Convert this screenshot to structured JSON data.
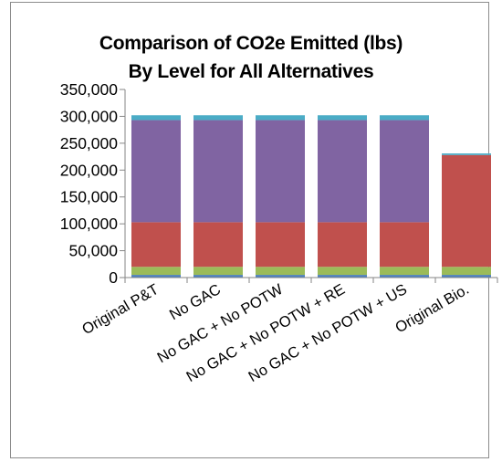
{
  "chart_data": {
    "type": "bar",
    "stacked": true,
    "title": "Comparison of CO2e Emitted (lbs) By Level for All Alternatives",
    "title_lines": [
      "Comparison of CO2e Emitted (lbs)",
      "By Level for All Alternatives"
    ],
    "xlabel": "",
    "ylabel": "",
    "ylim": [
      0,
      350000
    ],
    "yticks": [
      0,
      50000,
      100000,
      150000,
      200000,
      250000,
      300000,
      350000
    ],
    "ytick_labels": [
      "0",
      "50,000",
      "100,000",
      "150,000",
      "200,000",
      "250,000",
      "300,000",
      "350,000"
    ],
    "grid": false,
    "legend": "none",
    "categories": [
      "Original P&T",
      "No GAC",
      "No GAC + No POTW",
      "No GAC + No POTW + RE",
      "No GAC + No POTW + US",
      "Original Bio."
    ],
    "series": [
      {
        "color": "#4f81bd",
        "values": [
          5000,
          5000,
          5000,
          5000,
          5000,
          5000
        ]
      },
      {
        "color": "#9bbb59",
        "values": [
          15000,
          15000,
          15000,
          15000,
          15000,
          15000
        ]
      },
      {
        "color": "#c0504d",
        "values": [
          83000,
          83000,
          83000,
          83000,
          83000,
          208000
        ]
      },
      {
        "color": "#8064a2",
        "values": [
          190000,
          190000,
          190000,
          190000,
          190000,
          0
        ]
      },
      {
        "color": "#4bacc6",
        "values": [
          9000,
          9000,
          9000,
          9000,
          9000,
          3000
        ]
      }
    ]
  }
}
